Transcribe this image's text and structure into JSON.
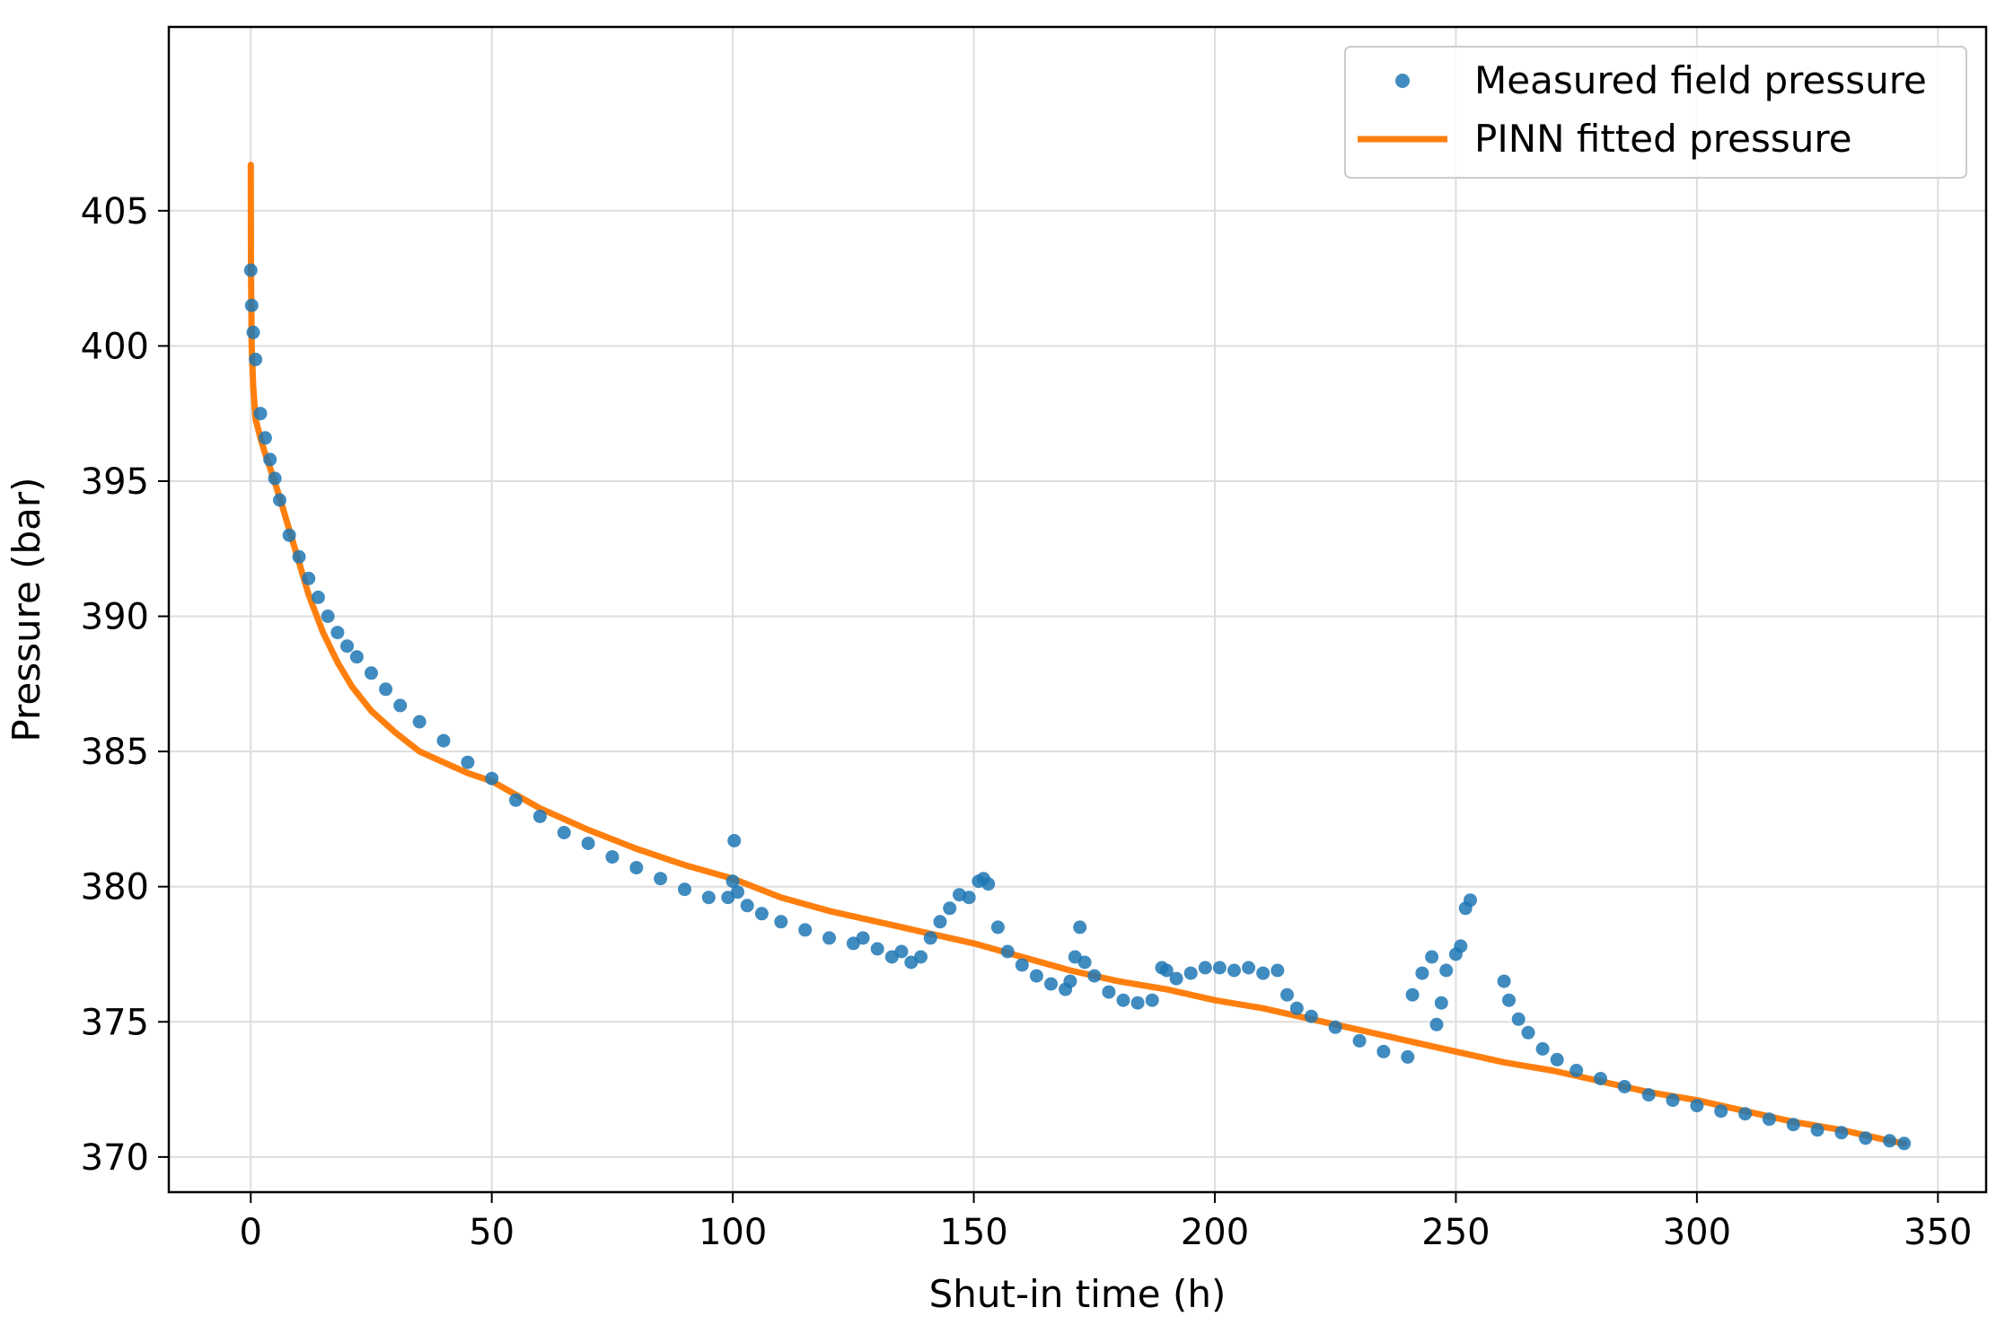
{
  "chart_data": {
    "type": "scatter",
    "title": "",
    "xlabel": "Shut-in time (h)",
    "ylabel": "Pressure (bar)",
    "xlim": [
      -17,
      360
    ],
    "ylim": [
      368.7,
      411.8
    ],
    "xticks": [
      0,
      50,
      100,
      150,
      200,
      250,
      300,
      350
    ],
    "yticks": [
      370,
      375,
      380,
      385,
      390,
      395,
      400,
      405
    ],
    "grid": true,
    "legend_position": "top-right",
    "series": [
      {
        "name": "Measured field pressure",
        "kind": "scatter",
        "color": "#1f77b4",
        "x": [
          0,
          0.2,
          0.5,
          1,
          2,
          3,
          4,
          5,
          6,
          8,
          10,
          12,
          14,
          16,
          18,
          20,
          22,
          25,
          28,
          31,
          35,
          40,
          45,
          50,
          55,
          60,
          65,
          70,
          75,
          80,
          85,
          90,
          95,
          99,
          100,
          100.3,
          101,
          103,
          106,
          110,
          115,
          120,
          125,
          127,
          130,
          133,
          135,
          137,
          139,
          141,
          143,
          145,
          147,
          149,
          151,
          152,
          153,
          155,
          157,
          160,
          163,
          166,
          169,
          170,
          171,
          172,
          173,
          175,
          178,
          181,
          184,
          187,
          189,
          190,
          192,
          195,
          198,
          201,
          204,
          207,
          210,
          213,
          215,
          217,
          220,
          225,
          230,
          235,
          240,
          241,
          243,
          245,
          246,
          247,
          248,
          250,
          251,
          252,
          253,
          260,
          261,
          263,
          265,
          268,
          271,
          275,
          280,
          285,
          290,
          295,
          300,
          305,
          310,
          315,
          320,
          325,
          330,
          335,
          340,
          343
        ],
        "y": [
          402.8,
          401.5,
          400.5,
          399.5,
          397.5,
          396.6,
          395.8,
          395.1,
          394.3,
          393.0,
          392.2,
          391.4,
          390.7,
          390.0,
          389.4,
          388.9,
          388.5,
          387.9,
          387.3,
          386.7,
          386.1,
          385.4,
          384.6,
          384.0,
          383.2,
          382.6,
          382.0,
          381.6,
          381.1,
          380.7,
          380.3,
          379.9,
          379.6,
          379.6,
          380.2,
          381.7,
          379.8,
          379.3,
          379.0,
          378.7,
          378.4,
          378.1,
          377.9,
          378.1,
          377.7,
          377.4,
          377.6,
          377.2,
          377.4,
          378.1,
          378.7,
          379.2,
          379.7,
          379.6,
          380.2,
          380.3,
          380.1,
          378.5,
          377.6,
          377.1,
          376.7,
          376.4,
          376.2,
          376.5,
          377.4,
          378.5,
          377.2,
          376.7,
          376.1,
          375.8,
          375.7,
          375.8,
          377.0,
          376.9,
          376.6,
          376.8,
          377.0,
          377.0,
          376.9,
          377.0,
          376.8,
          376.9,
          376.0,
          375.5,
          375.2,
          374.8,
          374.3,
          373.9,
          373.7,
          376.0,
          376.8,
          377.4,
          374.9,
          375.7,
          376.9,
          377.5,
          377.8,
          379.2,
          379.5,
          376.5,
          375.8,
          375.1,
          374.6,
          374.0,
          373.6,
          373.2,
          372.9,
          372.6,
          372.3,
          372.1,
          371.9,
          371.7,
          371.6,
          371.4,
          371.2,
          371.0,
          370.9,
          370.7,
          370.6,
          370.5
        ]
      },
      {
        "name": "PINN fitted pressure",
        "kind": "line",
        "color": "#ff7f0e",
        "x": [
          0,
          0.05,
          0.2,
          0.5,
          1,
          2,
          3,
          4,
          6,
          8,
          10,
          12,
          15,
          18,
          21,
          25,
          30,
          35,
          40,
          45,
          50,
          55,
          60,
          70,
          80,
          90,
          100,
          110,
          120,
          130,
          140,
          150,
          160,
          170,
          180,
          190,
          200,
          210,
          220,
          230,
          240,
          250,
          260,
          270,
          280,
          290,
          300,
          310,
          320,
          330,
          340,
          343
        ],
        "y": [
          406.7,
          403.0,
          400.0,
          398.5,
          397.3,
          396.6,
          396.0,
          395.5,
          394.4,
          393.2,
          392.0,
          390.8,
          389.4,
          388.3,
          387.4,
          386.5,
          385.7,
          385.0,
          384.6,
          384.2,
          383.9,
          383.4,
          382.9,
          382.1,
          381.4,
          380.8,
          380.3,
          379.6,
          379.1,
          378.7,
          378.3,
          377.9,
          377.4,
          376.9,
          376.5,
          376.2,
          375.8,
          375.5,
          375.1,
          374.7,
          374.3,
          373.9,
          373.5,
          373.2,
          372.8,
          372.4,
          372.1,
          371.7,
          371.3,
          371.0,
          370.6,
          370.5
        ]
      }
    ]
  }
}
